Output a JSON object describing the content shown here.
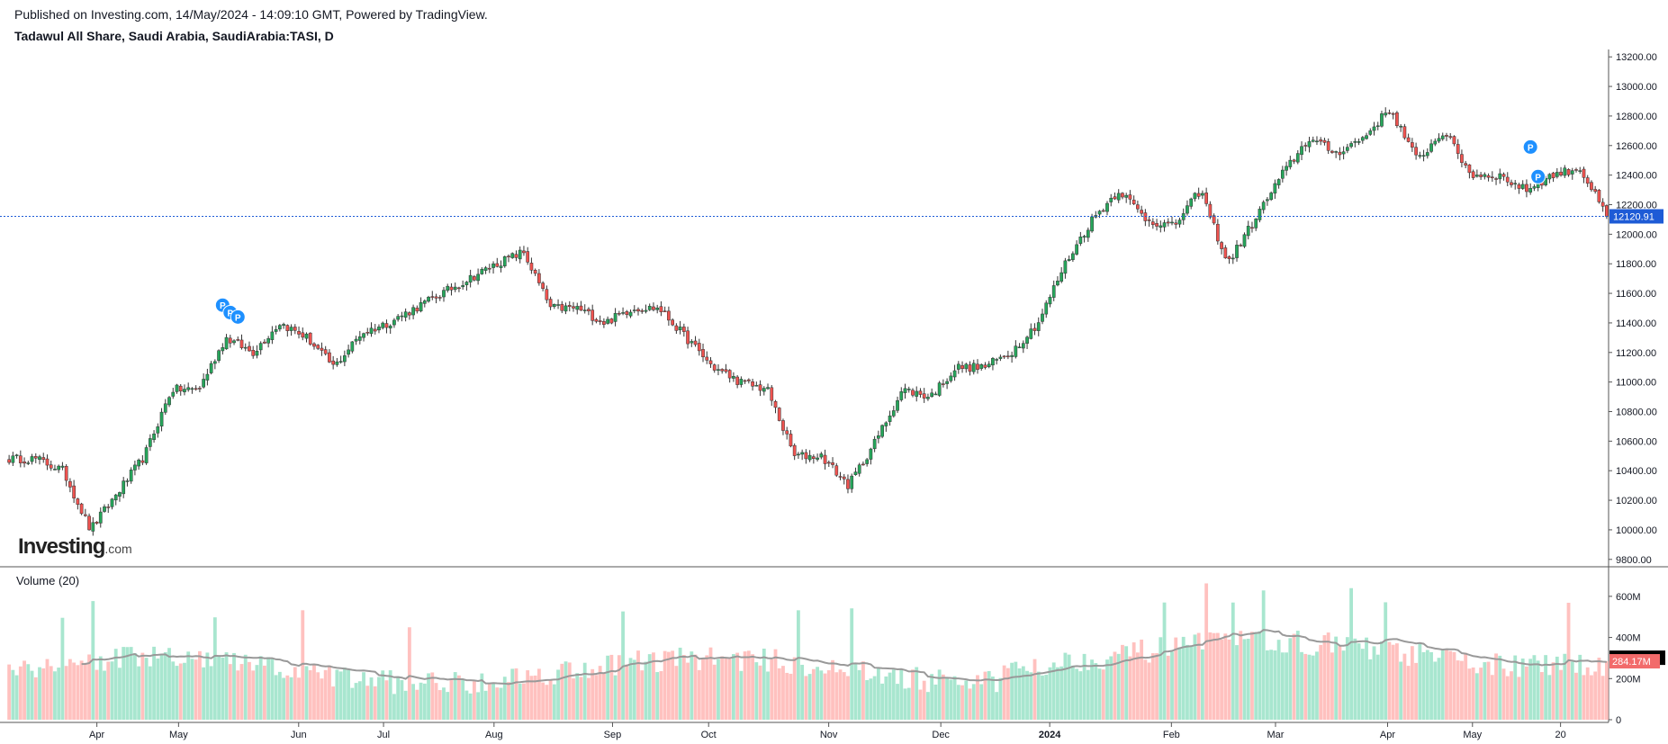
{
  "header": {
    "published": "Published on Investing.com, 14/May/2024 - 14:09:10 GMT, Powered by TradingView.",
    "instrument": "Tadawul All Share, Saudi Arabia, SaudiArabia:TASI, D"
  },
  "logo": {
    "main": "Investing",
    "suffix": ".com"
  },
  "volume_panel": {
    "label": "Volume (20)"
  },
  "colors": {
    "up": "#26a65b",
    "down": "#ef5350",
    "up_vol": "#a8e6cf",
    "down_vol": "#ffc1bf",
    "ma": "#999999",
    "last_price": "#1e5bd6",
    "marker": "#1e90ff"
  },
  "chart_data": {
    "type": "candlestick",
    "title": "Tadawul All Share, Saudi Arabia, SaudiArabia:TASI, D",
    "price_axis": {
      "ylim": [
        9750,
        13250
      ],
      "ticks": [
        "9800.00",
        "10000.00",
        "10200.00",
        "10400.00",
        "10600.00",
        "10800.00",
        "11000.00",
        "11200.00",
        "11400.00",
        "11600.00",
        "11800.00",
        "12000.00",
        "12200.00",
        "12400.00",
        "12600.00",
        "12800.00",
        "13000.00",
        "13200.00"
      ]
    },
    "volume_axis": {
      "ylim": [
        0,
        700
      ],
      "ticks": [
        "0",
        "200M",
        "400M",
        "600M"
      ],
      "unit": "M"
    },
    "x_axis": {
      "ticks": [
        "Apr",
        "May",
        "Jun",
        "Jul",
        "Aug",
        "Sep",
        "Oct",
        "Nov",
        "Dec",
        "2024",
        "Feb",
        "Mar",
        "Apr",
        "May",
        "20"
      ]
    },
    "close_keypoints": [
      10480,
      10480,
      10400,
      10000,
      10250,
      10500,
      10950,
      10950,
      11300,
      11200,
      11400,
      11300,
      11100,
      11330,
      11400,
      11500,
      11600,
      11700,
      11800,
      11880,
      11500,
      11500,
      11400,
      11500,
      11500,
      11300,
      11100,
      11000,
      10950,
      10500,
      10500,
      10300,
      10600,
      10950,
      10900,
      11100,
      11100,
      11200,
      11400,
      11800,
      12100,
      12300,
      12100,
      12050,
      12300,
      11800,
      12100,
      12400,
      12650,
      12550,
      12650,
      12850,
      12500,
      12700,
      12400,
      12400,
      12300,
      12400,
      12450,
      12120.91
    ],
    "last_price": "12120.91",
    "last_volume": "284.17M",
    "volume_ma_last": "301.413M",
    "markers": [
      {
        "label": "P",
        "index": 56,
        "value": 11520
      },
      {
        "label": "P",
        "index": 58,
        "value": 11470
      },
      {
        "label": "P",
        "index": 60,
        "value": 11440
      },
      {
        "label": "P",
        "index": 399,
        "value": 12590
      },
      {
        "label": "P",
        "index": 401,
        "value": 12390
      }
    ]
  }
}
